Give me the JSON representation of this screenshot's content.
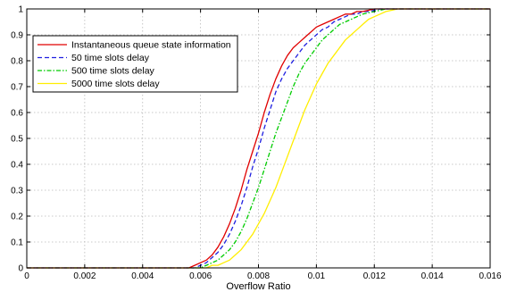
{
  "chart_data": {
    "type": "line",
    "title": "",
    "xlabel": "Overflow Ratio",
    "ylabel": "",
    "xlim": [
      0,
      0.016
    ],
    "ylim": [
      0,
      1
    ],
    "xticks": [
      0,
      0.002,
      0.004,
      0.006,
      0.008,
      0.01,
      0.012,
      0.014,
      0.016
    ],
    "xtick_labels": [
      "0",
      "0.002",
      "0.004",
      "0.006",
      "0.008",
      "0.01",
      "0.012",
      "0.014",
      "0.016"
    ],
    "yticks": [
      0,
      0.1,
      0.2,
      0.3,
      0.4,
      0.5,
      0.6,
      0.7,
      0.8,
      0.9,
      1
    ],
    "ytick_labels": [
      "0",
      "0.1",
      "0.2",
      "0.3",
      "0.4",
      "0.5",
      "0.6",
      "0.7",
      "0.8",
      "0.9",
      "1"
    ],
    "grid": true,
    "legend_position": "top-left",
    "series": [
      {
        "name": "Instantaneous queue state information",
        "color": "#e00000",
        "dash": "solid",
        "x": [
          0,
          0.0056,
          0.0058,
          0.006,
          0.0062,
          0.0064,
          0.0066,
          0.0068,
          0.007,
          0.0072,
          0.0074,
          0.0076,
          0.0078,
          0.008,
          0.0082,
          0.0084,
          0.0086,
          0.0088,
          0.009,
          0.0092,
          0.0094,
          0.0096,
          0.0098,
          0.01,
          0.0102,
          0.0104,
          0.0106,
          0.0108,
          0.011,
          0.0112,
          0.0114,
          0.0116,
          0.0118,
          0.012,
          0.0122,
          0.0124,
          0.016
        ],
        "y": [
          0,
          0,
          0.01,
          0.02,
          0.03,
          0.05,
          0.08,
          0.12,
          0.17,
          0.23,
          0.3,
          0.38,
          0.45,
          0.52,
          0.6,
          0.67,
          0.73,
          0.78,
          0.82,
          0.85,
          0.87,
          0.89,
          0.91,
          0.93,
          0.94,
          0.95,
          0.96,
          0.97,
          0.98,
          0.98,
          0.99,
          0.99,
          0.995,
          1,
          1,
          1,
          1
        ]
      },
      {
        "name": "50 time slots delay",
        "color": "#1f1fe0",
        "dash": "dashed",
        "x": [
          0,
          0.0058,
          0.006,
          0.0062,
          0.0064,
          0.0066,
          0.0068,
          0.007,
          0.0072,
          0.0074,
          0.0076,
          0.0078,
          0.008,
          0.0082,
          0.0084,
          0.0086,
          0.0088,
          0.009,
          0.0092,
          0.0094,
          0.0096,
          0.0098,
          0.01,
          0.0102,
          0.0104,
          0.0106,
          0.0108,
          0.011,
          0.0112,
          0.0114,
          0.0116,
          0.0118,
          0.012,
          0.0122,
          0.0124,
          0.016
        ],
        "y": [
          0,
          0,
          0.01,
          0.02,
          0.04,
          0.06,
          0.09,
          0.13,
          0.18,
          0.24,
          0.31,
          0.39,
          0.46,
          0.54,
          0.61,
          0.68,
          0.73,
          0.77,
          0.8,
          0.83,
          0.86,
          0.88,
          0.9,
          0.92,
          0.93,
          0.95,
          0.96,
          0.97,
          0.98,
          0.98,
          0.99,
          0.99,
          0.995,
          1,
          1,
          1
        ]
      },
      {
        "name": "500 time slots delay",
        "color": "#00cc00",
        "dash": "dash-dot",
        "x": [
          0,
          0.006,
          0.0062,
          0.0064,
          0.0066,
          0.0068,
          0.007,
          0.0072,
          0.0074,
          0.0076,
          0.0078,
          0.008,
          0.0082,
          0.0084,
          0.0086,
          0.0088,
          0.009,
          0.0092,
          0.0094,
          0.0096,
          0.0098,
          0.01,
          0.0102,
          0.0104,
          0.0106,
          0.0108,
          0.011,
          0.0112,
          0.0114,
          0.0116,
          0.0118,
          0.012,
          0.0122,
          0.0124,
          0.0126,
          0.016
        ],
        "y": [
          0,
          0,
          0.01,
          0.02,
          0.03,
          0.05,
          0.07,
          0.1,
          0.14,
          0.19,
          0.25,
          0.31,
          0.38,
          0.45,
          0.52,
          0.58,
          0.64,
          0.7,
          0.75,
          0.79,
          0.82,
          0.85,
          0.88,
          0.9,
          0.92,
          0.94,
          0.95,
          0.96,
          0.97,
          0.98,
          0.985,
          0.99,
          0.995,
          1,
          1,
          1
        ]
      },
      {
        "name": "5000 time slots delay",
        "color": "#ffee00",
        "dash": "solid",
        "x": [
          0,
          0.0062,
          0.0064,
          0.0066,
          0.0068,
          0.007,
          0.0072,
          0.0074,
          0.0076,
          0.0078,
          0.008,
          0.0082,
          0.0084,
          0.0086,
          0.0088,
          0.009,
          0.0092,
          0.0094,
          0.0096,
          0.0098,
          0.01,
          0.0102,
          0.0104,
          0.0106,
          0.0108,
          0.011,
          0.0112,
          0.0114,
          0.0116,
          0.0118,
          0.012,
          0.0122,
          0.0124,
          0.0126,
          0.0128,
          0.016
        ],
        "y": [
          0,
          0,
          0.01,
          0.01,
          0.02,
          0.03,
          0.05,
          0.07,
          0.1,
          0.13,
          0.17,
          0.21,
          0.26,
          0.31,
          0.37,
          0.43,
          0.49,
          0.55,
          0.61,
          0.66,
          0.71,
          0.75,
          0.79,
          0.82,
          0.85,
          0.88,
          0.9,
          0.92,
          0.94,
          0.96,
          0.97,
          0.98,
          0.99,
          0.995,
          1,
          1
        ]
      }
    ]
  }
}
